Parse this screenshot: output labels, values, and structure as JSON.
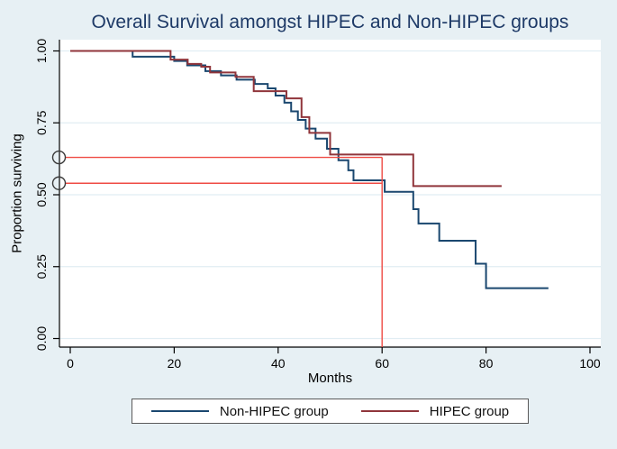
{
  "chart_data": {
    "type": "line",
    "subtype": "kaplan-meier-step",
    "title": "Overall Survival amongst HIPEC and Non-HIPEC groups",
    "xlabel": "Months",
    "ylabel": "Proportion surviving",
    "xlim": [
      0,
      100
    ],
    "ylim": [
      0.0,
      1.0
    ],
    "xticks": [
      0,
      20,
      40,
      60,
      80,
      100
    ],
    "yticks": [
      "0.00",
      "0.25",
      "0.50",
      "0.75",
      "1.00"
    ],
    "grid": true,
    "legend_position": "bottom-center",
    "series": [
      {
        "name": "Non-HIPEC group",
        "color": "#1a476f",
        "end_month": 92,
        "steps": [
          [
            0,
            1.0
          ],
          [
            12,
            0.98
          ],
          [
            20,
            0.965
          ],
          [
            22.5,
            0.95
          ],
          [
            26,
            0.93
          ],
          [
            29,
            0.915
          ],
          [
            32,
            0.9
          ],
          [
            35.5,
            0.885
          ],
          [
            38,
            0.87
          ],
          [
            39.5,
            0.845
          ],
          [
            41.2,
            0.82
          ],
          [
            42.5,
            0.79
          ],
          [
            43.8,
            0.76
          ],
          [
            45.3,
            0.73
          ],
          [
            47.2,
            0.695
          ],
          [
            49.4,
            0.66
          ],
          [
            51.6,
            0.62
          ],
          [
            53.5,
            0.585
          ],
          [
            54.5,
            0.55
          ],
          [
            60.5,
            0.51
          ],
          [
            66,
            0.45
          ],
          [
            67,
            0.4
          ],
          [
            71,
            0.34
          ],
          [
            78,
            0.26
          ],
          [
            80,
            0.175
          ]
        ]
      },
      {
        "name": "HIPEC group",
        "color": "#90353b",
        "end_month": 83,
        "steps": [
          [
            0,
            1.0
          ],
          [
            19.3,
            0.97
          ],
          [
            22.6,
            0.955
          ],
          [
            25.2,
            0.945
          ],
          [
            26.9,
            0.925
          ],
          [
            31.8,
            0.91
          ],
          [
            35.3,
            0.86
          ],
          [
            41.6,
            0.835
          ],
          [
            44.5,
            0.77
          ],
          [
            46,
            0.715
          ],
          [
            50,
            0.64
          ],
          [
            66,
            0.53
          ]
        ]
      }
    ],
    "reference": {
      "color": "#ef4b44",
      "marker": "open-circle",
      "h_lines": [
        {
          "value": 0.63
        },
        {
          "value": 0.54
        }
      ],
      "v_line": {
        "month": 60,
        "top_value": 0.63
      }
    },
    "colors": {
      "background": "#e7f0f4",
      "plot_background": "#ffffff",
      "grid": "#e1edf3",
      "axis": "#000000",
      "title_text": "#1e3a67",
      "marker_outline": "#3a3a3a"
    }
  }
}
